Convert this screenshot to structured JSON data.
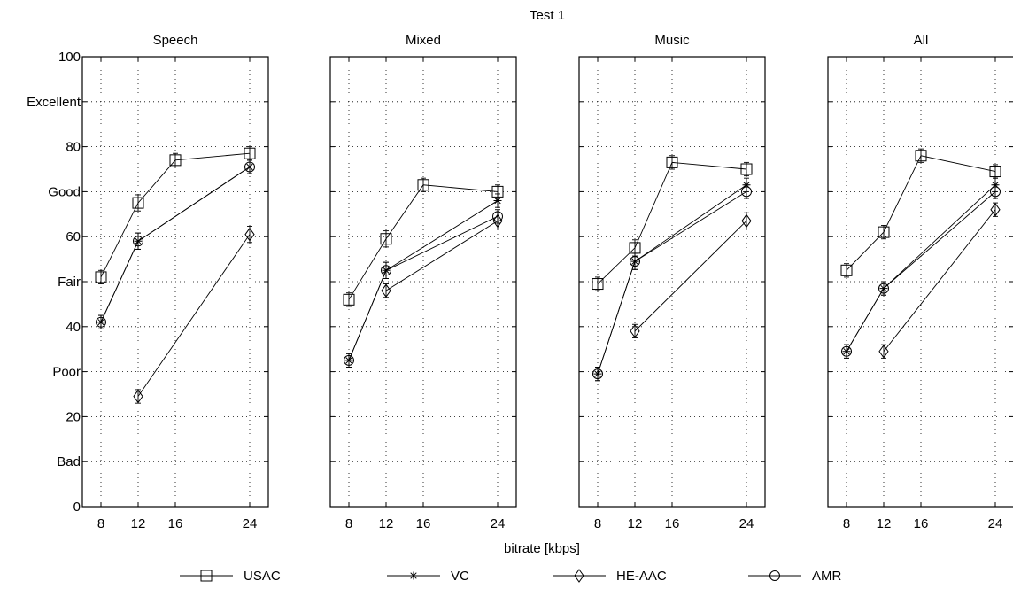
{
  "figure": {
    "suptitle": "Test 1",
    "xlabel": "bitrate [kbps]"
  },
  "y_axis": {
    "ticks": [
      {
        "v": 0,
        "label": "0"
      },
      {
        "v": 10,
        "label": "Bad"
      },
      {
        "v": 20,
        "label": "20"
      },
      {
        "v": 30,
        "label": "Poor"
      },
      {
        "v": 40,
        "label": "40"
      },
      {
        "v": 50,
        "label": "Fair"
      },
      {
        "v": 60,
        "label": "60"
      },
      {
        "v": 70,
        "label": "Good"
      },
      {
        "v": 80,
        "label": "80"
      },
      {
        "v": 90,
        "label": "Excellent"
      },
      {
        "v": 100,
        "label": "100"
      }
    ]
  },
  "legend": [
    {
      "name": "USAC",
      "marker": "square"
    },
    {
      "name": "VC",
      "marker": "star"
    },
    {
      "name": "HE-AAC",
      "marker": "diamond"
    },
    {
      "name": "AMR",
      "marker": "circle"
    }
  ],
  "chart_data": [
    {
      "type": "line",
      "title": "Speech",
      "xlim": [
        6,
        26
      ],
      "ylim": [
        0,
        100
      ],
      "x_ticks": [
        8,
        12,
        16,
        24
      ],
      "series": [
        {
          "name": "USAC",
          "marker": "square",
          "x": [
            8,
            12,
            16,
            24
          ],
          "y": [
            51,
            67.5,
            77,
            78.5
          ],
          "err": [
            1.5,
            1.8,
            1.5,
            1.5
          ]
        },
        {
          "name": "VC",
          "marker": "star",
          "x": [
            8,
            12,
            24
          ],
          "y": [
            41,
            59,
            75.5
          ],
          "err": [
            1.5,
            1.8,
            1.5
          ]
        },
        {
          "name": "HE-AAC",
          "marker": "diamond",
          "x": [
            12,
            24
          ],
          "y": [
            24.5,
            60.5
          ],
          "err": [
            1.5,
            1.8
          ]
        },
        {
          "name": "AMR",
          "marker": "circle",
          "x": [
            8,
            12,
            24
          ],
          "y": [
            41,
            59,
            75.5
          ],
          "err": [
            1.5,
            1.8,
            1.5
          ]
        }
      ]
    },
    {
      "type": "line",
      "title": "Mixed",
      "xlim": [
        6,
        26
      ],
      "ylim": [
        0,
        100
      ],
      "x_ticks": [
        8,
        12,
        16,
        24
      ],
      "series": [
        {
          "name": "USAC",
          "marker": "square",
          "x": [
            8,
            12,
            16,
            24
          ],
          "y": [
            46,
            59.5,
            71.5,
            70
          ],
          "err": [
            1.5,
            1.8,
            1.5,
            1.5
          ]
        },
        {
          "name": "VC",
          "marker": "star",
          "x": [
            8,
            12,
            24
          ],
          "y": [
            32.5,
            52.5,
            68
          ],
          "err": [
            1.5,
            1.8,
            1.5
          ]
        },
        {
          "name": "HE-AAC",
          "marker": "diamond",
          "x": [
            12,
            24
          ],
          "y": [
            48,
            63.5
          ],
          "err": [
            1.5,
            1.8
          ]
        },
        {
          "name": "AMR",
          "marker": "circle",
          "x": [
            8,
            12,
            24
          ],
          "y": [
            32.5,
            52.5,
            64.5
          ],
          "err": [
            1.5,
            1.8,
            1.5
          ]
        }
      ]
    },
    {
      "type": "line",
      "title": "Music",
      "xlim": [
        6,
        26
      ],
      "ylim": [
        0,
        100
      ],
      "x_ticks": [
        8,
        12,
        16,
        24
      ],
      "series": [
        {
          "name": "USAC",
          "marker": "square",
          "x": [
            8,
            12,
            16,
            24
          ],
          "y": [
            49.5,
            57.5,
            76.5,
            75
          ],
          "err": [
            1.5,
            1.8,
            1.5,
            1.5
          ]
        },
        {
          "name": "VC",
          "marker": "star",
          "x": [
            8,
            12,
            24
          ],
          "y": [
            29.5,
            54.5,
            71.5
          ],
          "err": [
            1.5,
            1.8,
            1.5
          ]
        },
        {
          "name": "HE-AAC",
          "marker": "diamond",
          "x": [
            12,
            24
          ],
          "y": [
            39,
            63.5
          ],
          "err": [
            1.5,
            1.8
          ]
        },
        {
          "name": "AMR",
          "marker": "circle",
          "x": [
            8,
            12,
            24
          ],
          "y": [
            29.5,
            54.5,
            70
          ],
          "err": [
            1.5,
            1.8,
            1.5
          ]
        }
      ]
    },
    {
      "type": "line",
      "title": "All",
      "xlim": [
        6,
        26
      ],
      "ylim": [
        0,
        100
      ],
      "x_ticks": [
        8,
        12,
        16,
        24
      ],
      "series": [
        {
          "name": "USAC",
          "marker": "square",
          "x": [
            8,
            12,
            16,
            24
          ],
          "y": [
            52.5,
            61,
            78,
            74.5
          ],
          "err": [
            1.5,
            1.5,
            1.5,
            1.5
          ]
        },
        {
          "name": "VC",
          "marker": "star",
          "x": [
            8,
            12,
            24
          ],
          "y": [
            34.5,
            48.5,
            71.5
          ],
          "err": [
            1.5,
            1.5,
            1.5
          ]
        },
        {
          "name": "HE-AAC",
          "marker": "diamond",
          "x": [
            12,
            24
          ],
          "y": [
            34.5,
            66
          ],
          "err": [
            1.5,
            1.5
          ]
        },
        {
          "name": "AMR",
          "marker": "circle",
          "x": [
            8,
            12,
            24
          ],
          "y": [
            34.5,
            48.5,
            70
          ],
          "err": [
            1.5,
            1.5,
            1.5
          ]
        }
      ]
    }
  ]
}
